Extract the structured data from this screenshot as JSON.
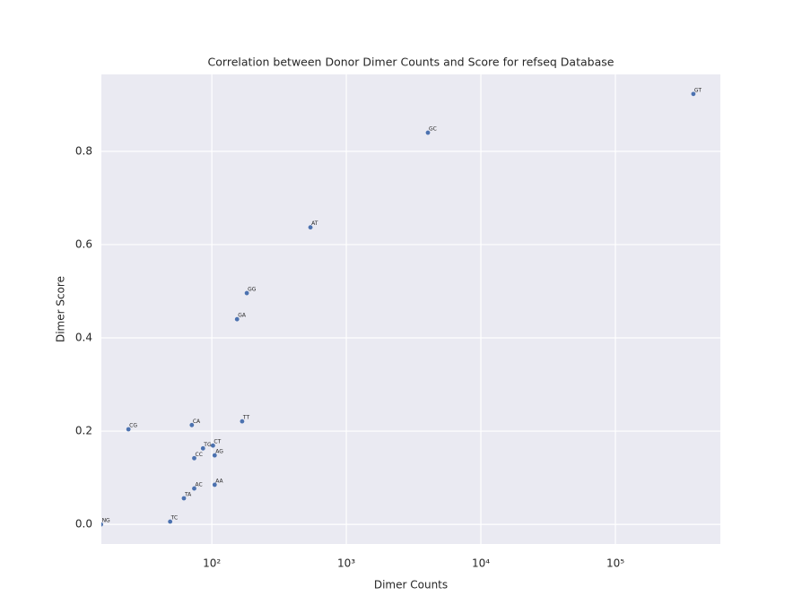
{
  "chart_data": {
    "type": "scatter",
    "title": "Correlation between Donor Dimer Counts and Score for refseq Database",
    "x_label": "Dimer Counts",
    "y_label": "Dimer Score",
    "xscale": "log",
    "grid": true,
    "series": [
      {
        "color": "#4c72b0",
        "labels": [
          "GT",
          "GC",
          "AT",
          "GG",
          "GA",
          "TT",
          "CG",
          "CA",
          "CT",
          "TG",
          "AG",
          "CC",
          "AA",
          "AC",
          "TA",
          "TC",
          "NG"
        ],
        "x": [
          380000,
          4040,
          541,
          182,
          154,
          168,
          24,
          71,
          102,
          86,
          105,
          74,
          105,
          74,
          62,
          49,
          15
        ],
        "values": [
          0.923,
          0.84,
          0.637,
          0.496,
          0.44,
          0.221,
          0.204,
          0.213,
          0.169,
          0.163,
          0.148,
          0.142,
          0.085,
          0.077,
          0.056,
          0.006,
          0.0
        ]
      }
    ],
    "xlim": [
      15.1,
      603000
    ],
    "ylim": [
      -0.042,
      0.965
    ],
    "xticks": [
      {
        "value": 100,
        "label": "10²"
      },
      {
        "value": 1000,
        "label": "10³"
      },
      {
        "value": 10000,
        "label": "10⁴"
      },
      {
        "value": 100000,
        "label": "10⁵"
      }
    ],
    "yticks": [
      {
        "value": 0,
        "label": "0.0"
      },
      0.2,
      0.4,
      0.6,
      0.8
    ]
  }
}
